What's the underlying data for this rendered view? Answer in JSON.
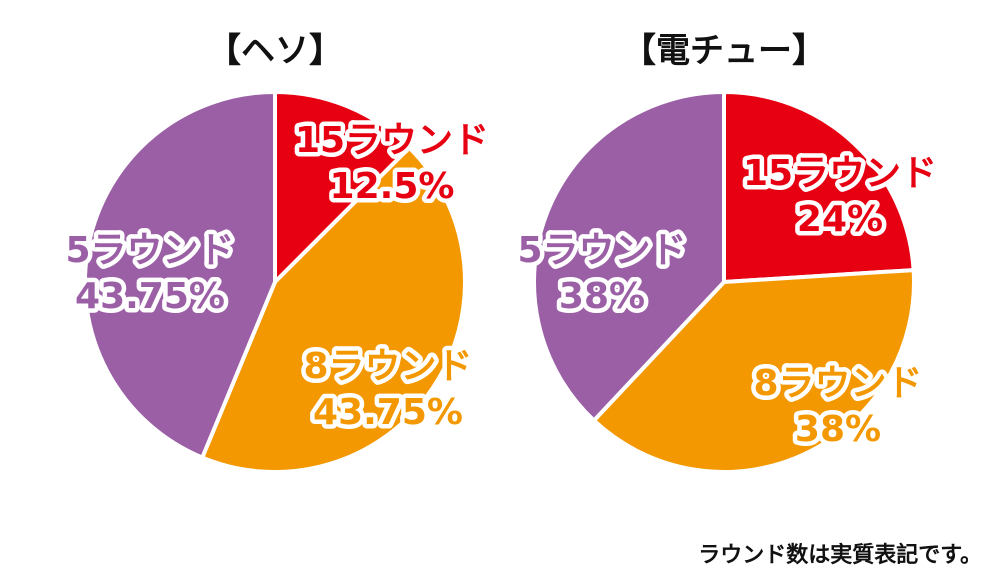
{
  "colors": {
    "round15": "#e60012",
    "round8": "#f39800",
    "round5": "#9b5fa6"
  },
  "chart_data": [
    {
      "type": "pie",
      "title": "【ヘソ】",
      "slices": [
        {
          "label": "15ラウンド",
          "value": 12.5,
          "value_text": "12.5%",
          "color_key": "round15"
        },
        {
          "label": "8ラウンド",
          "value": 43.75,
          "value_text": "43.75%",
          "color_key": "round8"
        },
        {
          "label": "5ラウンド",
          "value": 43.75,
          "value_text": "43.75%",
          "color_key": "round5"
        }
      ]
    },
    {
      "type": "pie",
      "title": "【電チュー】",
      "slices": [
        {
          "label": "15ラウンド",
          "value": 24,
          "value_text": "24%",
          "color_key": "round15"
        },
        {
          "label": "8ラウンド",
          "value": 38,
          "value_text": "38%",
          "color_key": "round8"
        },
        {
          "label": "5ラウンド",
          "value": 38,
          "value_text": "38%",
          "color_key": "round5"
        }
      ]
    }
  ],
  "footnote": "ラウンド数は実質表記です。"
}
